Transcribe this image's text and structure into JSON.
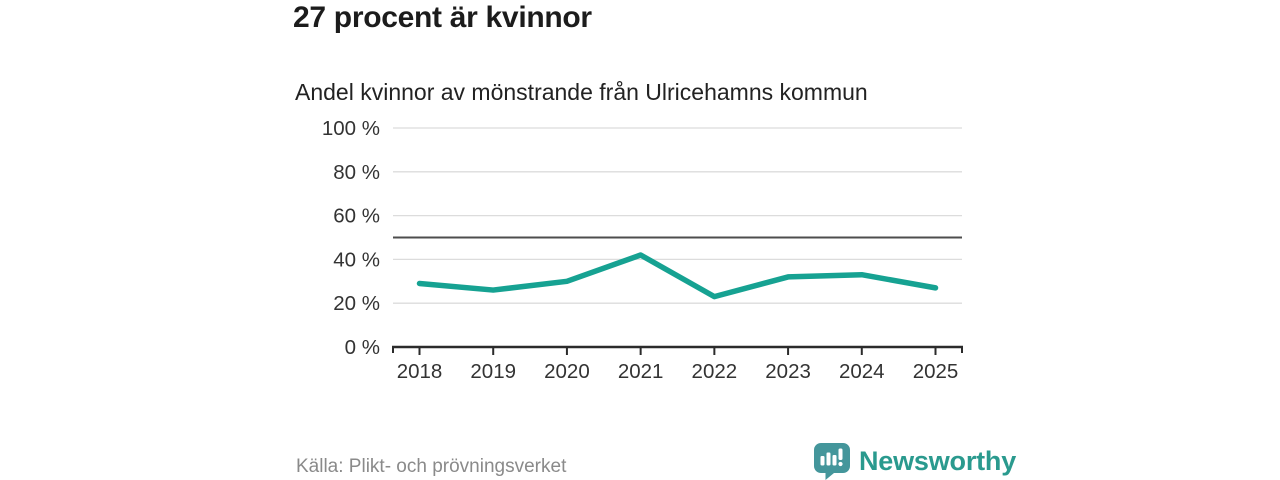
{
  "header": {
    "title": "27 procent är kvinnor",
    "subtitle": "Andel kvinnor av mönstrande från Ulricehamns kommun"
  },
  "chart_data": {
    "type": "line",
    "title": "27 procent är kvinnor",
    "subtitle": "Andel kvinnor av mönstrande från Ulricehamns kommun",
    "x": [
      "2018",
      "2019",
      "2020",
      "2021",
      "2022",
      "2023",
      "2024",
      "2025"
    ],
    "values": [
      29,
      26,
      30,
      42,
      23,
      32,
      33,
      27
    ],
    "xlabel": "",
    "ylabel": "",
    "ylim": [
      0,
      100
    ],
    "yticks": [
      0,
      20,
      40,
      60,
      80,
      100
    ],
    "ytick_suffix": " %",
    "reference_line": 50,
    "grid": "horizontal",
    "legend": "none",
    "colors": {
      "line": "#16a292",
      "grid": "#dcdcdc",
      "reference": "#4d4d4d",
      "axis": "#2b2b2b",
      "tick_label": "#333333"
    }
  },
  "footer": {
    "source": "Källa: Plikt- och prövningsverket",
    "brand": {
      "name": "Newsworthy",
      "color": "#2a9a8e",
      "icon": "bar-chart-speech-bubble-icon",
      "icon_bg": "#44969b"
    }
  }
}
